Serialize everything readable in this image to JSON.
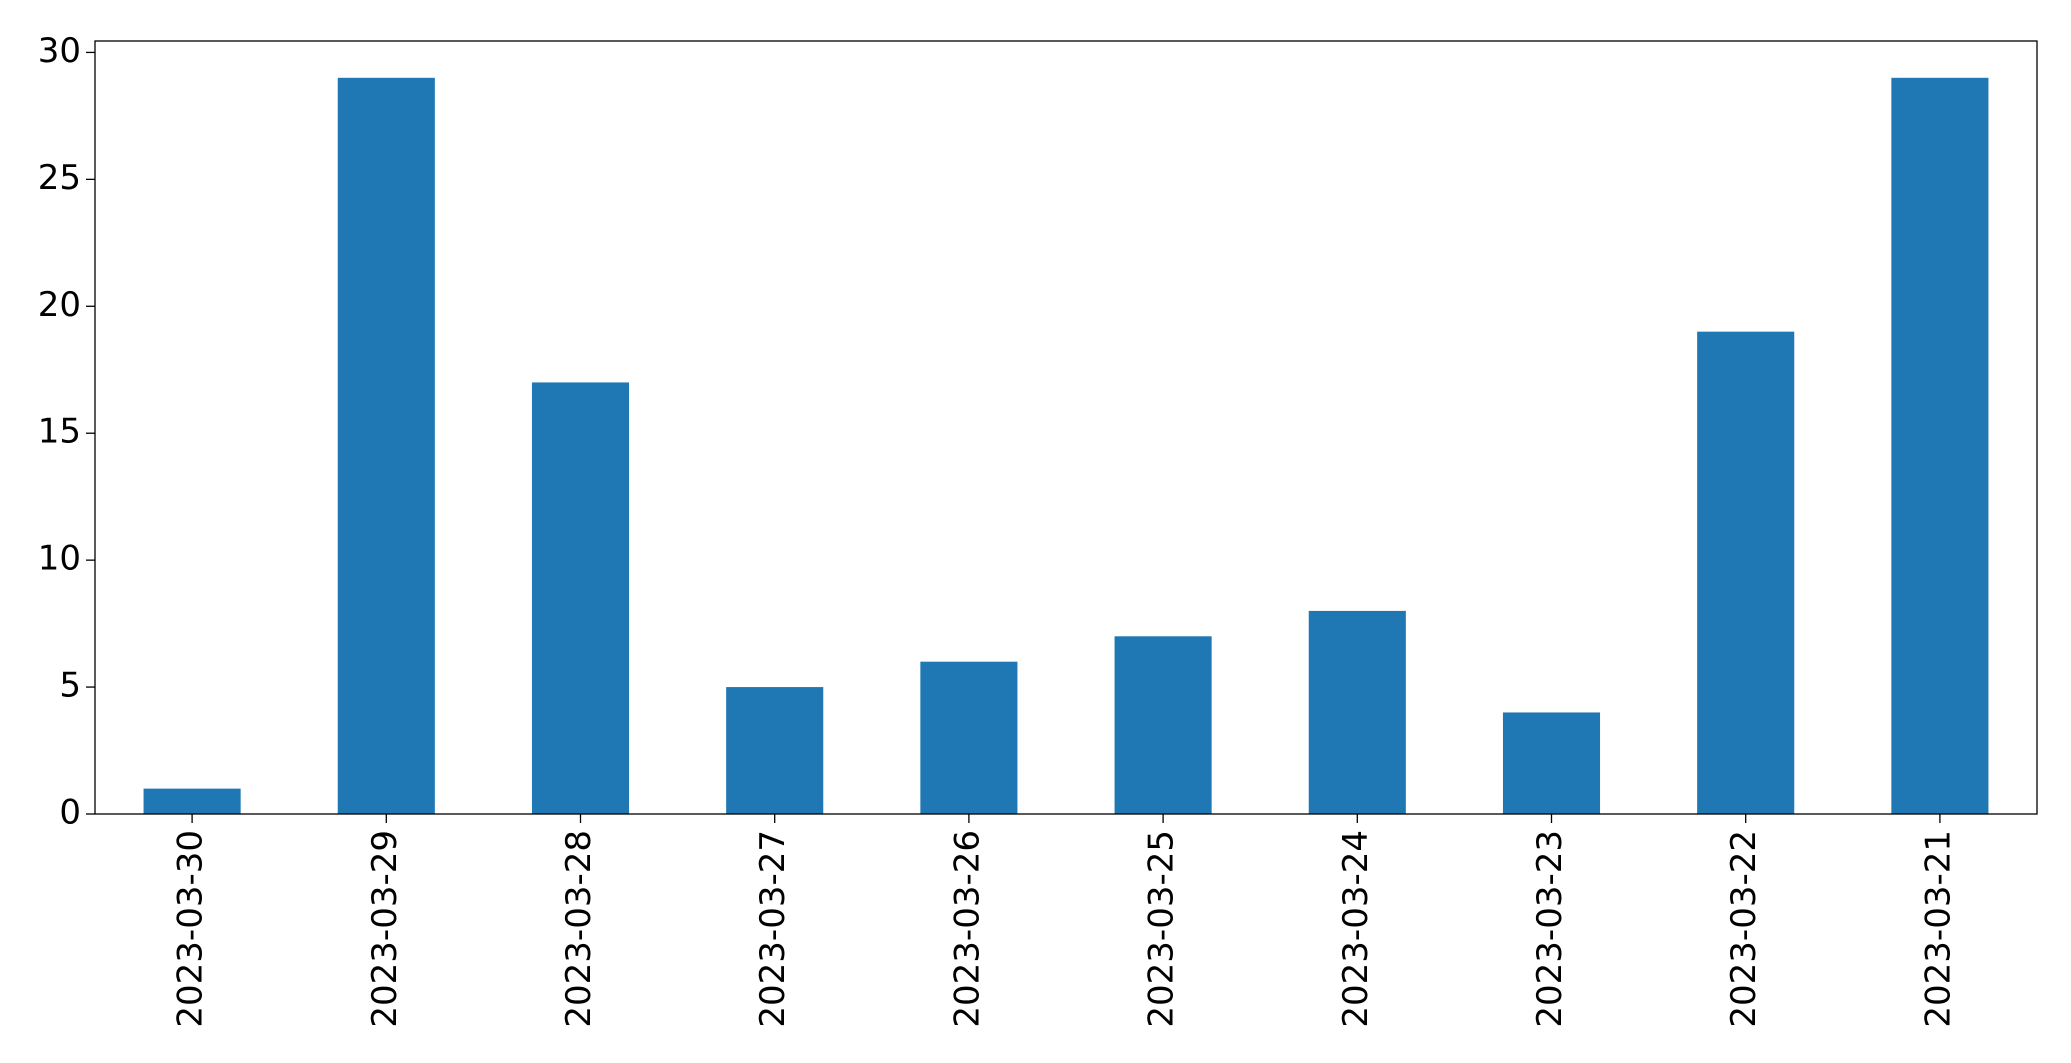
{
  "chart_data": {
    "type": "bar",
    "categories": [
      "2023-03-30",
      "2023-03-29",
      "2023-03-28",
      "2023-03-27",
      "2023-03-26",
      "2023-03-25",
      "2023-03-24",
      "2023-03-23",
      "2023-03-22",
      "2023-03-21"
    ],
    "values": [
      1,
      29,
      17,
      5,
      6,
      7,
      8,
      4,
      19,
      29
    ],
    "color": "#1f77b4",
    "ylim": [
      0,
      30.45
    ],
    "yticks": [
      0,
      5,
      10,
      15,
      20,
      25,
      30
    ],
    "grid": false
  }
}
